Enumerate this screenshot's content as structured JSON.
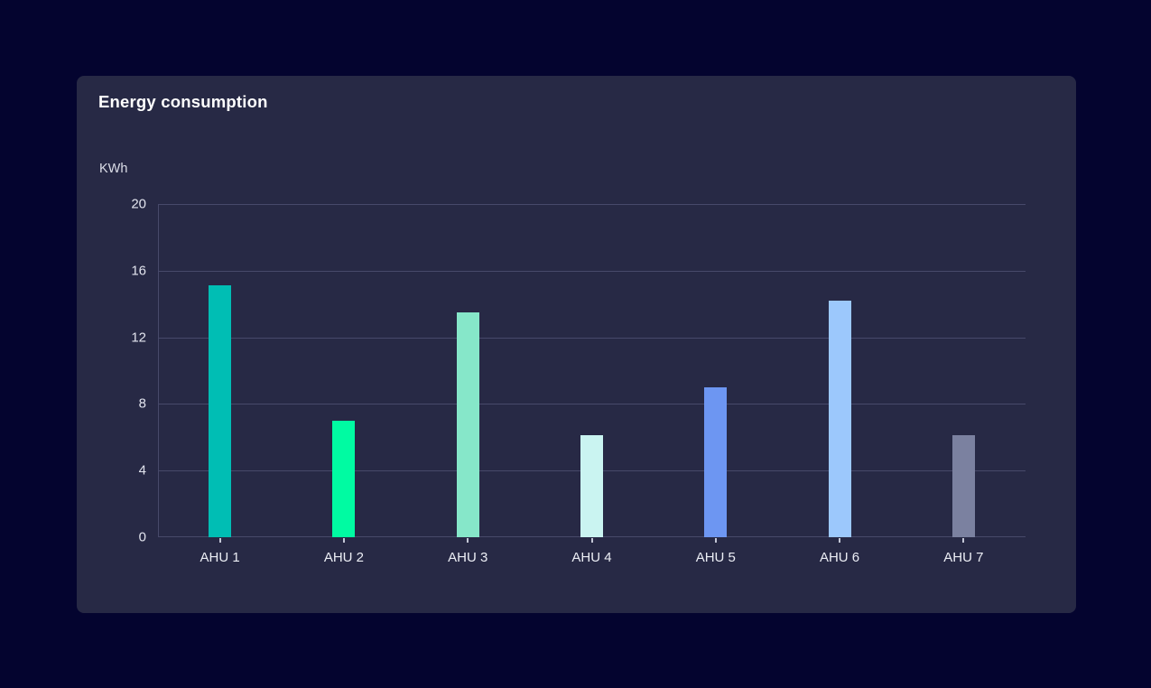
{
  "card": {
    "title": "Energy consumption",
    "unit_label": "KWh"
  },
  "chart_data": {
    "type": "bar",
    "title": "Energy consumption",
    "xlabel": "",
    "ylabel": "KWh",
    "categories": [
      "AHU 1",
      "AHU 2",
      "AHU 3",
      "AHU 4",
      "AHU 5",
      "AHU 6",
      "AHU 7"
    ],
    "values": [
      15.1,
      7.0,
      13.5,
      6.1,
      9.0,
      14.2,
      6.1
    ],
    "bar_colors": [
      "#00beb4",
      "#00fba2",
      "#86e7c9",
      "#caf4f1",
      "#6d96f2",
      "#9cc8fc",
      "#7b81a0"
    ],
    "ylim": [
      0,
      20
    ],
    "yticks": [
      0,
      4,
      8,
      12,
      16,
      20
    ],
    "grid": true,
    "legend": false
  },
  "colors": {
    "page_bg": "#04042f",
    "card_bg": "#272945",
    "gridline": "#47496a",
    "tick": "#c4c7d6",
    "title_text": "#ffffff",
    "y_label_text": "#e2e4ee",
    "x_label_text": "#eceef5"
  }
}
